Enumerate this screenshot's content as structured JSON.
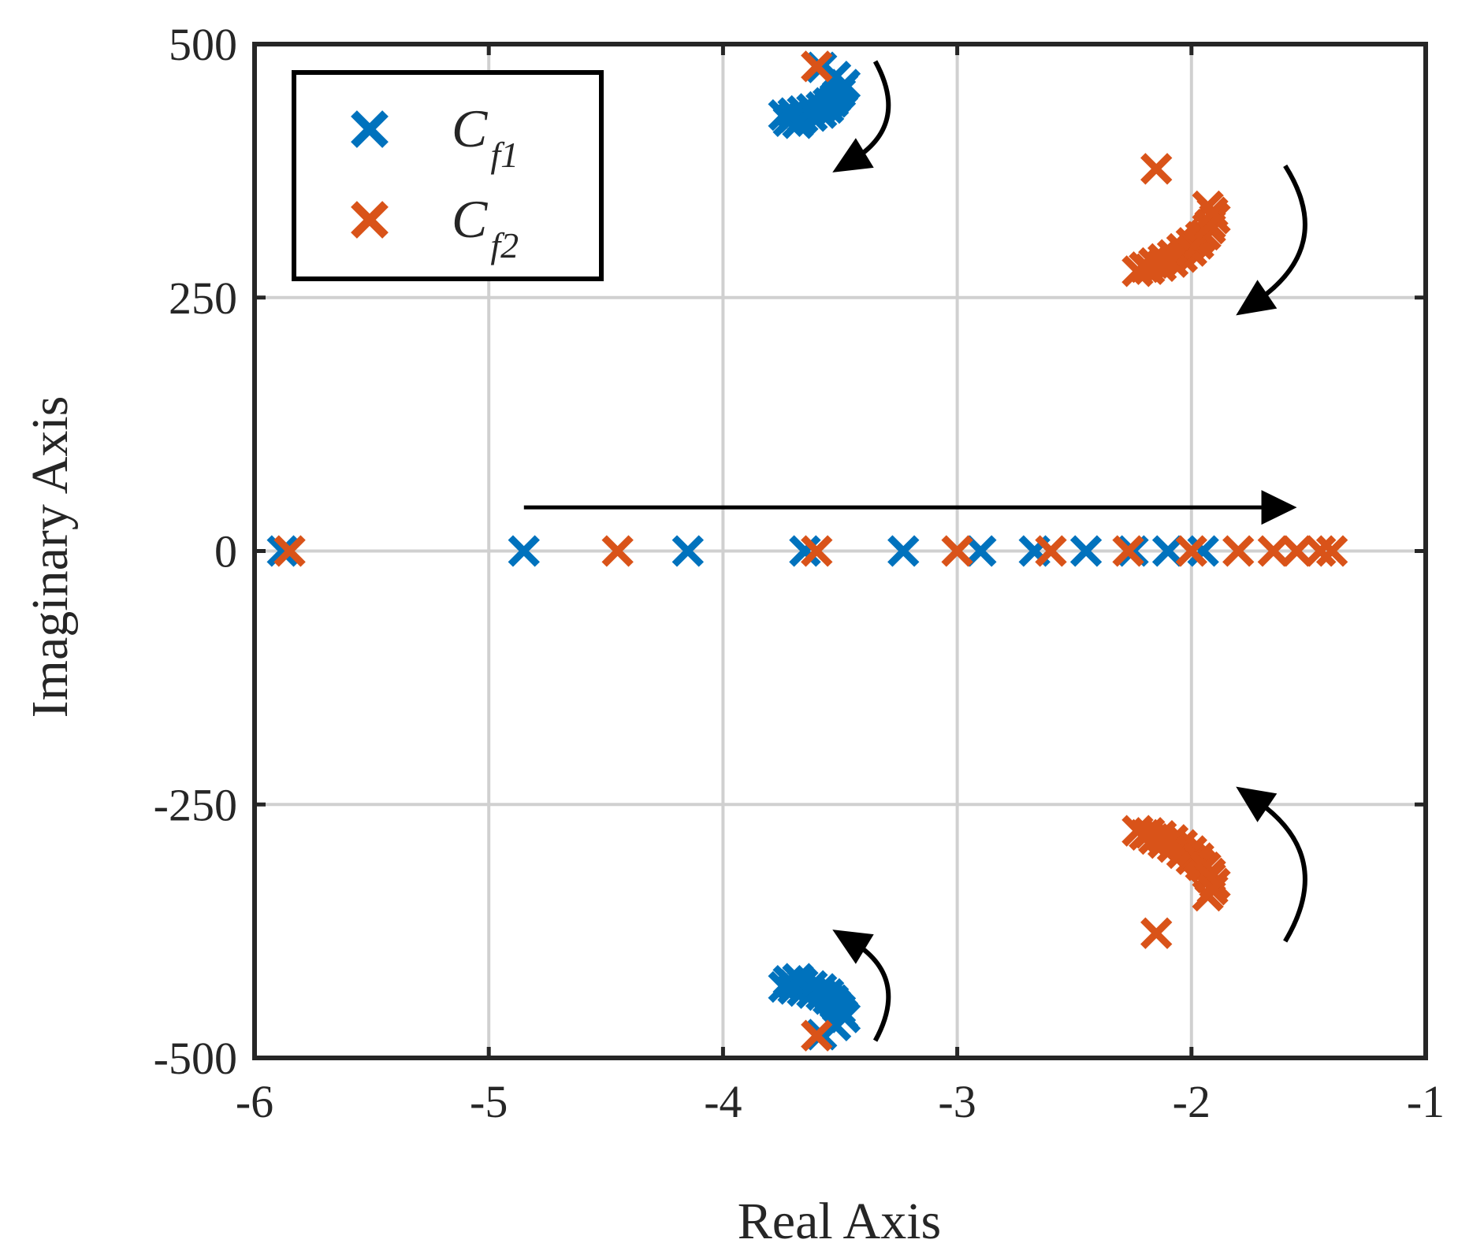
{
  "chart_data": {
    "type": "scatter",
    "title": "",
    "xlabel": "Real Axis",
    "ylabel": "Imaginary Axis",
    "xlim": [
      -6,
      -1
    ],
    "ylim": [
      -500,
      500
    ],
    "xticks": [
      -6,
      -5,
      -4,
      -3,
      -2,
      -1
    ],
    "yticks": [
      -500,
      -250,
      0,
      250,
      500
    ],
    "xtick_labels": [
      "-6",
      "-5",
      "-4",
      "-3",
      "-2",
      "-1"
    ],
    "ytick_labels": [
      "-500",
      "-250",
      "0",
      "250",
      "500"
    ],
    "grid": true,
    "legend_position": "top-left",
    "colors": {
      "cf1": "#0072BD",
      "cf2": "#D95319",
      "axis": "#262626",
      "grid": "#d0d0d0",
      "arrow": "#000000"
    },
    "series": [
      {
        "name": "C_f1",
        "legend_main": "C",
        "legend_sub": "f1",
        "color": "#0072BD",
        "marker": "x",
        "points": [
          [
            -5.88,
            0
          ],
          [
            -4.85,
            0
          ],
          [
            -4.15,
            0
          ],
          [
            -3.65,
            0
          ],
          [
            -3.23,
            0
          ],
          [
            -2.9,
            0
          ],
          [
            -2.67,
            0
          ],
          [
            -2.45,
            0
          ],
          [
            -2.25,
            0
          ],
          [
            -2.1,
            0
          ],
          [
            -1.95,
            0
          ],
          [
            -3.58,
            477
          ],
          [
            -3.52,
            468
          ],
          [
            -3.48,
            460
          ],
          [
            -3.5,
            452
          ],
          [
            -3.52,
            447
          ],
          [
            -3.55,
            442
          ],
          [
            -3.58,
            438
          ],
          [
            -3.62,
            436
          ],
          [
            -3.66,
            434
          ],
          [
            -3.7,
            432
          ],
          [
            -3.74,
            430
          ],
          [
            -3.7,
            428
          ],
          [
            -3.66,
            427
          ],
          [
            -3.62,
            429
          ],
          [
            -3.58,
            432
          ],
          [
            -3.55,
            437
          ],
          [
            -3.53,
            443
          ],
          [
            -3.51,
            450
          ],
          [
            -3.49,
            457
          ],
          [
            -3.72,
            424
          ],
          [
            -3.68,
            422
          ],
          [
            -3.58,
            -477
          ],
          [
            -3.52,
            -468
          ],
          [
            -3.48,
            -460
          ],
          [
            -3.5,
            -452
          ],
          [
            -3.52,
            -447
          ],
          [
            -3.55,
            -442
          ],
          [
            -3.58,
            -438
          ],
          [
            -3.62,
            -436
          ],
          [
            -3.66,
            -434
          ],
          [
            -3.7,
            -432
          ],
          [
            -3.74,
            -430
          ],
          [
            -3.7,
            -428
          ],
          [
            -3.66,
            -427
          ],
          [
            -3.62,
            -429
          ],
          [
            -3.58,
            -432
          ],
          [
            -3.55,
            -437
          ],
          [
            -3.53,
            -443
          ],
          [
            -3.51,
            -450
          ],
          [
            -3.49,
            -457
          ],
          [
            -3.72,
            -424
          ],
          [
            -3.68,
            -422
          ]
        ]
      },
      {
        "name": "C_f2",
        "legend_main": "C",
        "legend_sub": "f2",
        "color": "#D95319",
        "marker": "x",
        "points": [
          [
            -5.85,
            0
          ],
          [
            -4.45,
            0
          ],
          [
            -3.6,
            0
          ],
          [
            -3.0,
            0
          ],
          [
            -2.6,
            0
          ],
          [
            -2.27,
            0
          ],
          [
            -2.0,
            0
          ],
          [
            -1.8,
            0
          ],
          [
            -1.65,
            0
          ],
          [
            -1.55,
            0
          ],
          [
            -1.45,
            0
          ],
          [
            -1.4,
            0
          ],
          [
            -3.6,
            478
          ],
          [
            -2.15,
            377
          ],
          [
            -1.93,
            340
          ],
          [
            -1.9,
            328
          ],
          [
            -1.92,
            318
          ],
          [
            -1.96,
            310
          ],
          [
            -2.0,
            304
          ],
          [
            -2.04,
            298
          ],
          [
            -2.08,
            292
          ],
          [
            -2.12,
            288
          ],
          [
            -2.16,
            284
          ],
          [
            -2.2,
            280
          ],
          [
            -2.23,
            276
          ],
          [
            -2.18,
            278
          ],
          [
            -2.13,
            281
          ],
          [
            -2.08,
            285
          ],
          [
            -2.04,
            290
          ],
          [
            -2.0,
            296
          ],
          [
            -1.97,
            303
          ],
          [
            -1.94,
            312
          ],
          [
            -1.92,
            322
          ],
          [
            -1.91,
            334
          ],
          [
            -3.6,
            -478
          ],
          [
            -2.15,
            -377
          ],
          [
            -1.93,
            -340
          ],
          [
            -1.9,
            -328
          ],
          [
            -1.92,
            -318
          ],
          [
            -1.96,
            -310
          ],
          [
            -2.0,
            -304
          ],
          [
            -2.04,
            -298
          ],
          [
            -2.08,
            -292
          ],
          [
            -2.12,
            -288
          ],
          [
            -2.16,
            -284
          ],
          [
            -2.2,
            -280
          ],
          [
            -2.23,
            -276
          ],
          [
            -2.18,
            -278
          ],
          [
            -2.13,
            -281
          ],
          [
            -2.08,
            -285
          ],
          [
            -2.04,
            -290
          ],
          [
            -2.0,
            -296
          ],
          [
            -1.97,
            -303
          ],
          [
            -1.94,
            -312
          ],
          [
            -1.92,
            -322
          ],
          [
            -1.91,
            -334
          ]
        ]
      }
    ],
    "annotations": [
      {
        "type": "straight-arrow",
        "from": [
          -4.85,
          43
        ],
        "to": [
          -1.55,
          43
        ]
      },
      {
        "type": "curved-arrow",
        "from": [
          -3.35,
          483
        ],
        "control": [
          -3.2,
          420
        ],
        "to": [
          -3.45,
          385
        ]
      },
      {
        "type": "curved-arrow",
        "from": [
          -1.6,
          380
        ],
        "control": [
          -1.38,
          300
        ],
        "to": [
          -1.73,
          245
        ]
      },
      {
        "type": "curved-arrow",
        "from": [
          -1.6,
          -385
        ],
        "control": [
          -1.38,
          -300
        ],
        "to": [
          -1.73,
          -245
        ]
      },
      {
        "type": "curved-arrow",
        "from": [
          -3.35,
          -483
        ],
        "control": [
          -3.2,
          -420
        ],
        "to": [
          -3.45,
          -385
        ]
      }
    ]
  }
}
